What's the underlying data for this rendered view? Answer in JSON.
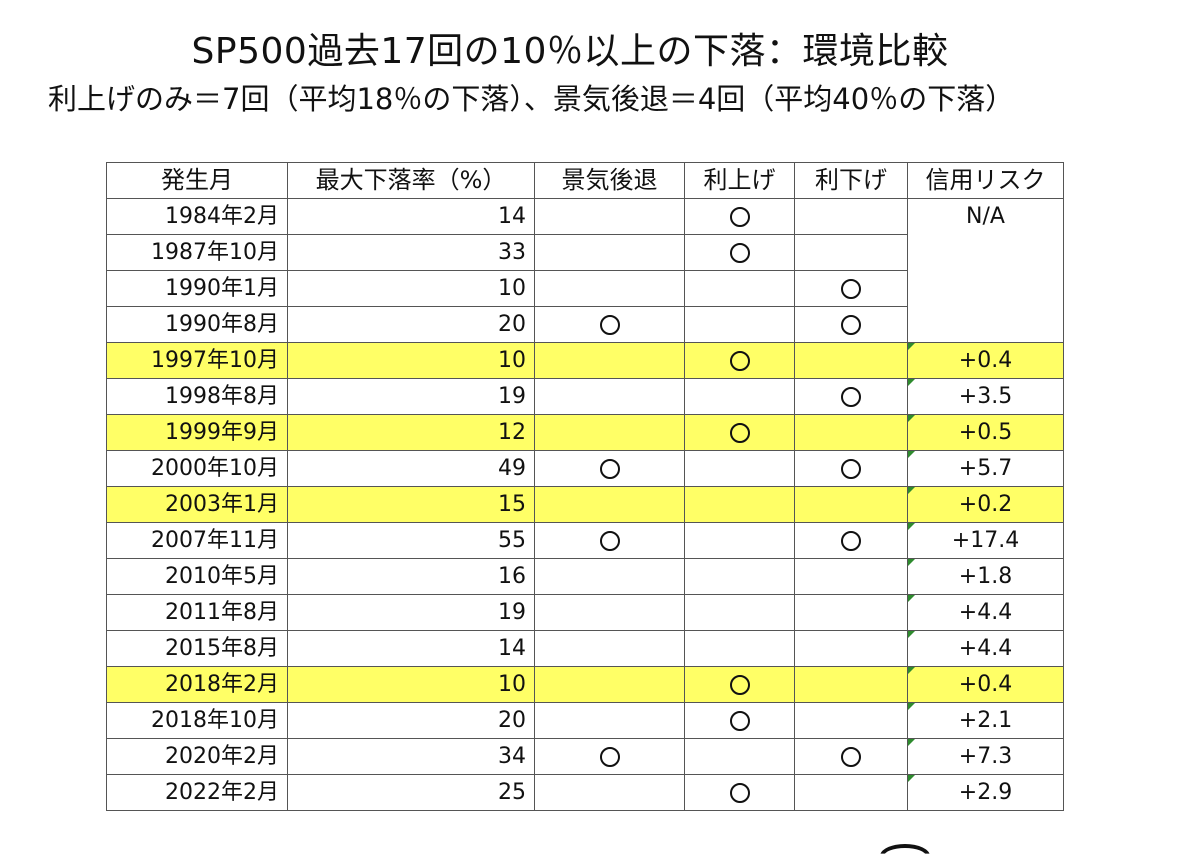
{
  "title": "SP500過去17回の10％以上の下落：環境比較",
  "subtitle": "利上げのみ＝7回（平均18％の下落）、景気後退＝4回（平均40％の下落）",
  "table": {
    "headers": [
      "発生月",
      "最大下落率（%）",
      "景気後退",
      "利上げ",
      "利下げ",
      "信用リスク"
    ],
    "na_label": "N/A",
    "mark_symbol": "○",
    "highlight_color": "#ffff66",
    "rows": [
      {
        "month": "1984年2月",
        "drop": "14",
        "recession": false,
        "rate_hike": true,
        "rate_cut": false,
        "credit": null,
        "highlight": false
      },
      {
        "month": "1987年10月",
        "drop": "33",
        "recession": false,
        "rate_hike": true,
        "rate_cut": false,
        "credit": null,
        "highlight": false
      },
      {
        "month": "1990年1月",
        "drop": "10",
        "recession": false,
        "rate_hike": false,
        "rate_cut": true,
        "credit": null,
        "highlight": false
      },
      {
        "month": "1990年8月",
        "drop": "20",
        "recession": true,
        "rate_hike": false,
        "rate_cut": true,
        "credit": null,
        "highlight": false
      },
      {
        "month": "1997年10月",
        "drop": "10",
        "recession": false,
        "rate_hike": true,
        "rate_cut": false,
        "credit": "+0.4",
        "highlight": true
      },
      {
        "month": "1998年8月",
        "drop": "19",
        "recession": false,
        "rate_hike": false,
        "rate_cut": true,
        "credit": "+3.5",
        "highlight": false
      },
      {
        "month": "1999年9月",
        "drop": "12",
        "recession": false,
        "rate_hike": true,
        "rate_cut": false,
        "credit": "+0.5",
        "highlight": true
      },
      {
        "month": "2000年10月",
        "drop": "49",
        "recession": true,
        "rate_hike": false,
        "rate_cut": true,
        "credit": "+5.7",
        "highlight": false
      },
      {
        "month": "2003年1月",
        "drop": "15",
        "recession": false,
        "rate_hike": false,
        "rate_cut": false,
        "credit": "+0.2",
        "highlight": true
      },
      {
        "month": "2007年11月",
        "drop": "55",
        "recession": true,
        "rate_hike": false,
        "rate_cut": true,
        "credit": "+17.4",
        "highlight": false
      },
      {
        "month": "2010年5月",
        "drop": "16",
        "recession": false,
        "rate_hike": false,
        "rate_cut": false,
        "credit": "+1.8",
        "highlight": false
      },
      {
        "month": "2011年8月",
        "drop": "19",
        "recession": false,
        "rate_hike": false,
        "rate_cut": false,
        "credit": "+4.4",
        "highlight": false
      },
      {
        "month": "2015年8月",
        "drop": "14",
        "recession": false,
        "rate_hike": false,
        "rate_cut": false,
        "credit": "+4.4",
        "highlight": false
      },
      {
        "month": "2018年2月",
        "drop": "10",
        "recession": false,
        "rate_hike": true,
        "rate_cut": false,
        "credit": "+0.4",
        "highlight": true
      },
      {
        "month": "2018年10月",
        "drop": "20",
        "recession": false,
        "rate_hike": true,
        "rate_cut": false,
        "credit": "+2.1",
        "highlight": false
      },
      {
        "month": "2020年2月",
        "drop": "34",
        "recession": true,
        "rate_hike": false,
        "rate_cut": true,
        "credit": "+7.3",
        "highlight": false
      },
      {
        "month": "2022年2月",
        "drop": "25",
        "recession": false,
        "rate_hike": true,
        "rate_cut": false,
        "credit": "+2.9",
        "highlight": false
      }
    ]
  }
}
